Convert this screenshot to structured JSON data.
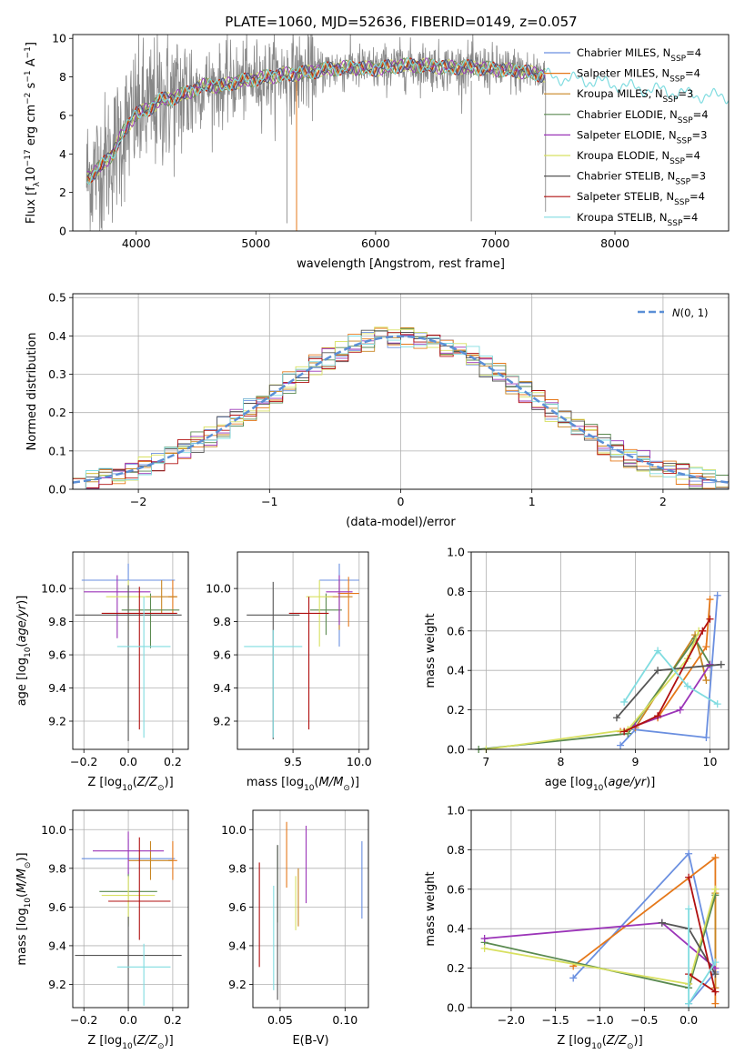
{
  "title": "PLATE=1060, MJD=52636, FIBERID=0149, z=0.057",
  "colors": [
    "#6a8fe0",
    "#e5781a",
    "#c88522",
    "#5a8a50",
    "#9b34b8",
    "#d8e060",
    "#555555",
    "#b01010",
    "#80dce0"
  ],
  "chart_data": [
    {
      "id": "spectrum",
      "type": "line",
      "xlabel": "wavelength [Angstrom, rest frame]",
      "ylabel": "Flux [f_λ10^-17 erg cm^-2 s^-1 A^-1]",
      "xlim": [
        3470,
        8950
      ],
      "ylim": [
        0,
        10.2
      ],
      "xticks": [
        4000,
        5000,
        6000,
        7000,
        8000
      ],
      "yticks": [
        0,
        2,
        4,
        6,
        8,
        10
      ],
      "legend_loc": "upper right",
      "series": [
        {
          "name": "Chabrier MILES, N_SSP=4"
        },
        {
          "name": "Salpeter MILES, N_SSP=4"
        },
        {
          "name": "Kroupa MILES, N_SSP=3"
        },
        {
          "name": "Chabrier ELODIE, N_SSP=4"
        },
        {
          "name": "Salpeter ELODIE, N_SSP=3"
        },
        {
          "name": "Kroupa ELODIE, N_SSP=4"
        },
        {
          "name": "Chabrier STELIB, N_SSP=3"
        },
        {
          "name": "Salpeter STELIB, N_SSP=4"
        },
        {
          "name": "Kroupa STELIB, N_SSP=4"
        }
      ],
      "data_profile": {
        "x": [
          3600,
          3700,
          3800,
          3900,
          4000,
          4100,
          4200,
          4300,
          4400,
          4500,
          4600,
          4700,
          4800,
          4900,
          5000,
          5200,
          5400,
          5600,
          5800,
          6000,
          6200,
          6400,
          6600,
          6800,
          7000,
          7200,
          7400,
          7600,
          7800,
          8000,
          8200,
          8400,
          8600,
          8800
        ],
        "y": [
          2.8,
          3.3,
          4.0,
          5.2,
          6.1,
          6.3,
          6.8,
          6.9,
          7.1,
          7.4,
          7.6,
          7.5,
          7.7,
          7.8,
          7.9,
          8.1,
          8.2,
          8.4,
          8.5,
          8.4,
          8.6,
          8.6,
          8.5,
          8.5,
          8.4,
          8.3,
          8.1,
          7.9,
          7.8,
          7.6,
          7.4,
          7.3,
          7.1,
          7.0
        ]
      }
    },
    {
      "id": "residuals",
      "type": "bar",
      "xlabel": "(data-model)/error",
      "ylabel": "Normed distribution",
      "xlim": [
        -2.5,
        2.5
      ],
      "ylim": [
        0,
        0.51
      ],
      "xticks": [
        -2,
        -1,
        0,
        1,
        2
      ],
      "yticks": [
        0.0,
        0.1,
        0.2,
        0.3,
        0.4,
        0.5
      ],
      "bin_width": 0.1,
      "legend": "N(0,1)",
      "legend_loc": "upper right"
    },
    {
      "id": "age_vs_Z",
      "type": "scatter",
      "xlabel": "Z [log10(Z/Z⊙)]",
      "ylabel": "age [log10(age/yr)]",
      "xlim": [
        -0.25,
        0.27
      ],
      "ylim": [
        9.03,
        10.22
      ],
      "xticks": [
        -0.2,
        0.0,
        0.2
      ],
      "yticks": [
        9.2,
        9.4,
        9.6,
        9.8,
        10.0
      ],
      "points": [
        {
          "x": 0.0,
          "y": 10.05,
          "xerr": 0.21,
          "yerr": [
            0.1,
            0.1
          ]
        },
        {
          "x": 0.2,
          "y": 9.95,
          "xerr": 0.02,
          "yerr": [
            0.1,
            0.1
          ]
        },
        {
          "x": 0.15,
          "y": 9.95,
          "xerr": 0.07,
          "yerr": [
            0.1,
            0.1
          ]
        },
        {
          "x": 0.1,
          "y": 9.87,
          "xerr": 0.13,
          "yerr": [
            0.1,
            0.23
          ]
        },
        {
          "x": -0.05,
          "y": 9.98,
          "xerr": 0.15,
          "yerr": [
            0.1,
            0.28
          ]
        },
        {
          "x": 0.0,
          "y": 9.95,
          "xerr": 0.1,
          "yerr": [
            0.1,
            0.2
          ]
        },
        {
          "x": 0.0,
          "y": 9.84,
          "xerr": 0.24,
          "yerr": [
            0.18,
            0.76
          ]
        },
        {
          "x": 0.05,
          "y": 9.85,
          "xerr": 0.17,
          "yerr": [
            0.16,
            0.7
          ]
        },
        {
          "x": 0.07,
          "y": 9.65,
          "xerr": 0.12,
          "yerr": [
            0.3,
            0.55
          ]
        }
      ]
    },
    {
      "id": "age_vs_mass",
      "type": "scatter",
      "xlabel": "mass [log10(M/M⊙)]",
      "ylabel": "",
      "xlim": [
        9.08,
        10.07
      ],
      "ylim": [
        9.03,
        10.22
      ],
      "xticks": [
        9.5,
        10.0
      ],
      "yticks": [
        9.2,
        9.4,
        9.6,
        9.8,
        10.0
      ],
      "points": [
        {
          "x": 9.85,
          "y": 10.05,
          "xerr": 0.15,
          "yerr": [
            0.1,
            0.4
          ]
        },
        {
          "x": 9.92,
          "y": 9.97,
          "xerr": 0.08,
          "yerr": [
            0.1,
            0.2
          ]
        },
        {
          "x": 9.85,
          "y": 9.95,
          "xerr": 0.1,
          "yerr": [
            0.1,
            0.2
          ]
        },
        {
          "x": 9.75,
          "y": 9.87,
          "xerr": 0.12,
          "yerr": [
            0.1,
            0.15
          ]
        },
        {
          "x": 9.85,
          "y": 9.98,
          "xerr": 0.1,
          "yerr": [
            0.1,
            0.2
          ]
        },
        {
          "x": 9.7,
          "y": 9.95,
          "xerr": 0.1,
          "yerr": [
            0.1,
            0.3
          ]
        },
        {
          "x": 9.35,
          "y": 9.84,
          "xerr": 0.2,
          "yerr": [
            0.2,
            0.75
          ]
        },
        {
          "x": 9.62,
          "y": 9.85,
          "xerr": 0.15,
          "yerr": [
            0.1,
            0.7
          ]
        },
        {
          "x": 9.35,
          "y": 9.65,
          "xerr": 0.22,
          "yerr": [
            0.1,
            0.55
          ]
        }
      ]
    },
    {
      "id": "weight_vs_age",
      "type": "line",
      "xlabel": "age [log10(age/yr)]",
      "ylabel": "mass weight",
      "xlim": [
        6.8,
        10.25
      ],
      "ylim": [
        0,
        1.0
      ],
      "xticks": [
        7,
        8,
        9,
        10
      ],
      "yticks": [
        0.0,
        0.2,
        0.4,
        0.6,
        0.8,
        1.0
      ],
      "series": [
        {
          "x": [
            8.8,
            9.0,
            9.95,
            10.1
          ],
          "y": [
            0.02,
            0.1,
            0.06,
            0.78
          ]
        },
        {
          "x": [
            8.8,
            9.3,
            9.95,
            10.0
          ],
          "y": [
            0.09,
            0.16,
            0.52,
            0.76
          ]
        },
        {
          "x": [
            9.0,
            9.8,
            9.95
          ],
          "y": [
            0.11,
            0.58,
            0.35
          ]
        },
        {
          "x": [
            6.9,
            8.9,
            9.8,
            10.0
          ],
          "y": [
            0.0,
            0.08,
            0.56,
            0.43
          ]
        },
        {
          "x": [
            9.0,
            9.6,
            10.0
          ],
          "y": [
            0.12,
            0.2,
            0.43
          ]
        },
        {
          "x": [
            7.0,
            8.9,
            9.7,
            9.85
          ],
          "y": [
            0.0,
            0.1,
            0.46,
            0.6
          ]
        },
        {
          "x": [
            8.75,
            9.3,
            10.15
          ],
          "y": [
            0.16,
            0.4,
            0.43
          ]
        },
        {
          "x": [
            8.85,
            9.3,
            9.9,
            10.0
          ],
          "y": [
            0.09,
            0.17,
            0.6,
            0.66
          ]
        },
        {
          "x": [
            8.85,
            9.3,
            9.7,
            10.1
          ],
          "y": [
            0.24,
            0.5,
            0.32,
            0.23
          ]
        }
      ]
    },
    {
      "id": "mass_vs_Z",
      "type": "scatter",
      "xlabel": "Z [log10(Z/Z⊙)]",
      "ylabel": "mass [log10(M/M⊙)]",
      "xlim": [
        -0.25,
        0.27
      ],
      "ylim": [
        9.08,
        10.1
      ],
      "xticks": [
        -0.2,
        0.0,
        0.2
      ],
      "yticks": [
        9.2,
        9.4,
        9.6,
        9.8,
        10.0
      ],
      "points": [
        {
          "x": 0.0,
          "y": 9.85,
          "xerr": 0.21,
          "yerr": [
            0.1,
            0.1
          ]
        },
        {
          "x": 0.2,
          "y": 9.84,
          "xerr": 0.02,
          "yerr": [
            0.1,
            0.1
          ]
        },
        {
          "x": 0.1,
          "y": 9.84,
          "xerr": 0.1,
          "yerr": [
            0.1,
            0.1
          ]
        },
        {
          "x": 0.0,
          "y": 9.68,
          "xerr": 0.13,
          "yerr": [
            0.1,
            0.18
          ]
        },
        {
          "x": 0.0,
          "y": 9.89,
          "xerr": 0.16,
          "yerr": [
            0.1,
            0.12
          ]
        },
        {
          "x": 0.0,
          "y": 9.66,
          "xerr": 0.12,
          "yerr": [
            0.1,
            0.15
          ]
        },
        {
          "x": 0.0,
          "y": 9.35,
          "xerr": 0.24,
          "yerr": [
            0.2,
            0.55
          ]
        },
        {
          "x": 0.05,
          "y": 9.63,
          "xerr": 0.14,
          "yerr": [
            0.33,
            0.2
          ]
        },
        {
          "x": 0.07,
          "y": 9.29,
          "xerr": 0.12,
          "yerr": [
            0.12,
            0.2
          ]
        }
      ]
    },
    {
      "id": "mass_vs_ebv",
      "type": "scatter",
      "xlabel": "E(B-V)",
      "ylabel": "",
      "xlim": [
        0.029,
        0.118
      ],
      "ylim": [
        9.08,
        10.1
      ],
      "xticks": [
        0.05,
        0.1
      ],
      "yticks": [
        9.2,
        9.4,
        9.6,
        9.8,
        10.0
      ],
      "points": [
        {
          "x": 0.113,
          "y": 9.74,
          "yerr": [
            0.2,
            0.2
          ]
        },
        {
          "x": 0.055,
          "y": 9.84,
          "yerr": [
            0.2,
            0.14
          ]
        },
        {
          "x": 0.064,
          "y": 9.65,
          "yerr": [
            0.15,
            0.15
          ]
        },
        {
          "x": 0.048,
          "y": 9.72,
          "yerr": [
            0.2,
            0.2
          ]
        },
        {
          "x": 0.07,
          "y": 9.82,
          "yerr": [
            0.2,
            0.2
          ]
        },
        {
          "x": 0.062,
          "y": 9.62,
          "yerr": [
            0.14,
            0.14
          ]
        },
        {
          "x": 0.048,
          "y": 9.52,
          "yerr": [
            0.4,
            0.4
          ]
        },
        {
          "x": 0.034,
          "y": 9.56,
          "yerr": [
            0.27,
            0.27
          ]
        },
        {
          "x": 0.045,
          "y": 9.44,
          "yerr": [
            0.27,
            0.27
          ]
        }
      ]
    },
    {
      "id": "weight_vs_Z",
      "type": "line",
      "xlabel": "Z [log10(Z/Z⊙)]",
      "ylabel": "mass weight",
      "xlim": [
        -2.45,
        0.45
      ],
      "ylim": [
        0,
        1.0
      ],
      "xticks": [
        -2.0,
        -1.5,
        -1.0,
        -0.5,
        0.0
      ],
      "yticks": [
        0.0,
        0.2,
        0.4,
        0.6,
        0.8,
        1.0
      ],
      "series": [
        {
          "x": [
            -1.3,
            0.0,
            0.3,
            0.0
          ],
          "y": [
            0.15,
            0.78,
            0.18,
            0.02
          ]
        },
        {
          "x": [
            -1.3,
            0.3,
            0.3
          ],
          "y": [
            0.21,
            0.76,
            0.02
          ]
        },
        {
          "x": [
            0.0,
            0.3,
            0.3
          ],
          "y": [
            0.12,
            0.58,
            0.1
          ]
        },
        {
          "x": [
            -2.3,
            0.0,
            0.3
          ],
          "y": [
            0.33,
            0.1,
            0.57
          ]
        },
        {
          "x": [
            -2.3,
            -0.3,
            0.3
          ],
          "y": [
            0.35,
            0.43,
            0.2
          ]
        },
        {
          "x": [
            -2.3,
            0.0,
            0.3
          ],
          "y": [
            0.3,
            0.12,
            0.6
          ]
        },
        {
          "x": [
            -0.3,
            0.0,
            0.3
          ],
          "y": [
            0.43,
            0.4,
            0.17
          ]
        },
        {
          "x": [
            0.0,
            0.3,
            0.0
          ],
          "y": [
            0.66,
            0.08,
            0.17
          ]
        },
        {
          "x": [
            0.0,
            0.0,
            0.3
          ],
          "y": [
            0.5,
            0.02,
            0.23
          ]
        }
      ]
    }
  ]
}
